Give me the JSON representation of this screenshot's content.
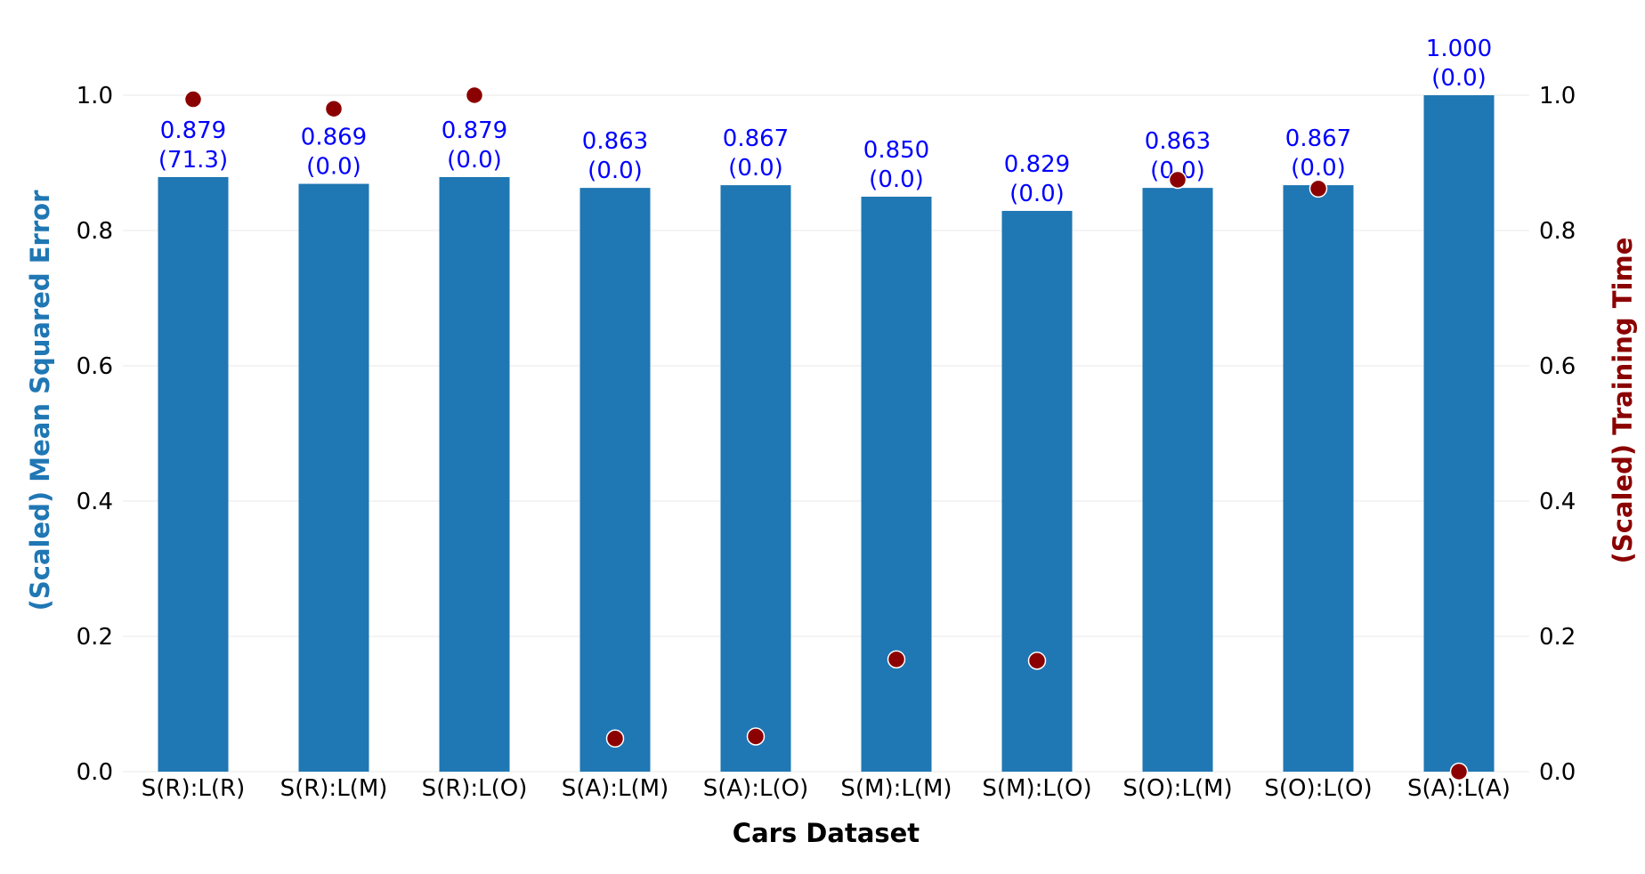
{
  "chart_data": {
    "type": "bar",
    "xlabel": "Cars Dataset",
    "ylabel_left": "(Scaled) Mean Squared Error",
    "ylabel_right": "(Scaled) Training Time",
    "categories": [
      "S(R):L(R)",
      "S(R):L(M)",
      "S(R):L(O)",
      "S(A):L(M)",
      "S(A):L(O)",
      "S(M):L(M)",
      "S(M):L(O)",
      "S(O):L(M)",
      "S(O):L(O)",
      "S(A):L(A)"
    ],
    "ylim": [
      0,
      1
    ],
    "yticks": [
      "0.0",
      "0.2",
      "0.4",
      "0.6",
      "0.8",
      "1.0"
    ],
    "grid": true,
    "series": [
      {
        "name": "(Scaled) Mean Squared Error",
        "kind": "bar",
        "axis": "left",
        "color": "#1f77b4",
        "values": [
          0.879,
          0.869,
          0.879,
          0.863,
          0.867,
          0.85,
          0.829,
          0.863,
          0.867,
          1.0
        ],
        "labels": [
          "0.879",
          "0.869",
          "0.879",
          "0.863",
          "0.867",
          "0.850",
          "0.829",
          "0.863",
          "0.867",
          "1.000"
        ],
        "sublabels": [
          "(71.3)",
          "(0.0)",
          "(0.0)",
          "(0.0)",
          "(0.0)",
          "(0.0)",
          "(0.0)",
          "(0.0)",
          "(0.0)",
          "(0.0)"
        ]
      },
      {
        "name": "(Scaled) Training Time",
        "kind": "scatter",
        "axis": "right",
        "color": "#8b0000",
        "values": [
          0.994,
          0.98,
          1.0,
          0.049,
          0.052,
          0.166,
          0.164,
          0.875,
          0.862,
          0.0
        ]
      }
    ],
    "colors": {
      "bar": "#1f77b4",
      "point": "#8b0000",
      "bar_label": "#0000ff",
      "left_axis_label": "#1f77b4",
      "right_axis_label": "#8b0000"
    }
  }
}
